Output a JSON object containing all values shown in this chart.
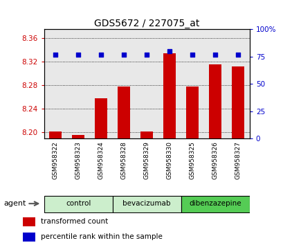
{
  "title": "GDS5672 / 227075_at",
  "samples": [
    "GSM958322",
    "GSM958323",
    "GSM958324",
    "GSM958328",
    "GSM958329",
    "GSM958330",
    "GSM958325",
    "GSM958326",
    "GSM958327"
  ],
  "transformed_counts": [
    8.202,
    8.196,
    8.258,
    8.278,
    8.202,
    8.335,
    8.278,
    8.316,
    8.312
  ],
  "percentile_ranks": [
    77,
    77,
    77,
    77,
    77,
    80,
    77,
    77,
    77
  ],
  "groups": [
    {
      "label": "control",
      "indices": [
        0,
        1,
        2
      ],
      "color": "#cceecc"
    },
    {
      "label": "bevacizumab",
      "indices": [
        3,
        4,
        5
      ],
      "color": "#cceecc"
    },
    {
      "label": "dibenzazepine",
      "indices": [
        6,
        7,
        8
      ],
      "color": "#55cc55"
    }
  ],
  "ylim_left": [
    8.19,
    8.375
  ],
  "ylim_right": [
    0,
    100
  ],
  "yticks_left": [
    8.2,
    8.24,
    8.28,
    8.32,
    8.36
  ],
  "yticks_right": [
    0,
    25,
    50,
    75,
    100
  ],
  "bar_color": "#cc0000",
  "dot_color": "#0000cc",
  "bar_width": 0.55,
  "background_color": "#ffffff",
  "plot_bg_color": "#e8e8e8",
  "legend_labels": [
    "transformed count",
    "percentile rank within the sample"
  ],
  "agent_label": "agent",
  "bar_base": 8.19
}
